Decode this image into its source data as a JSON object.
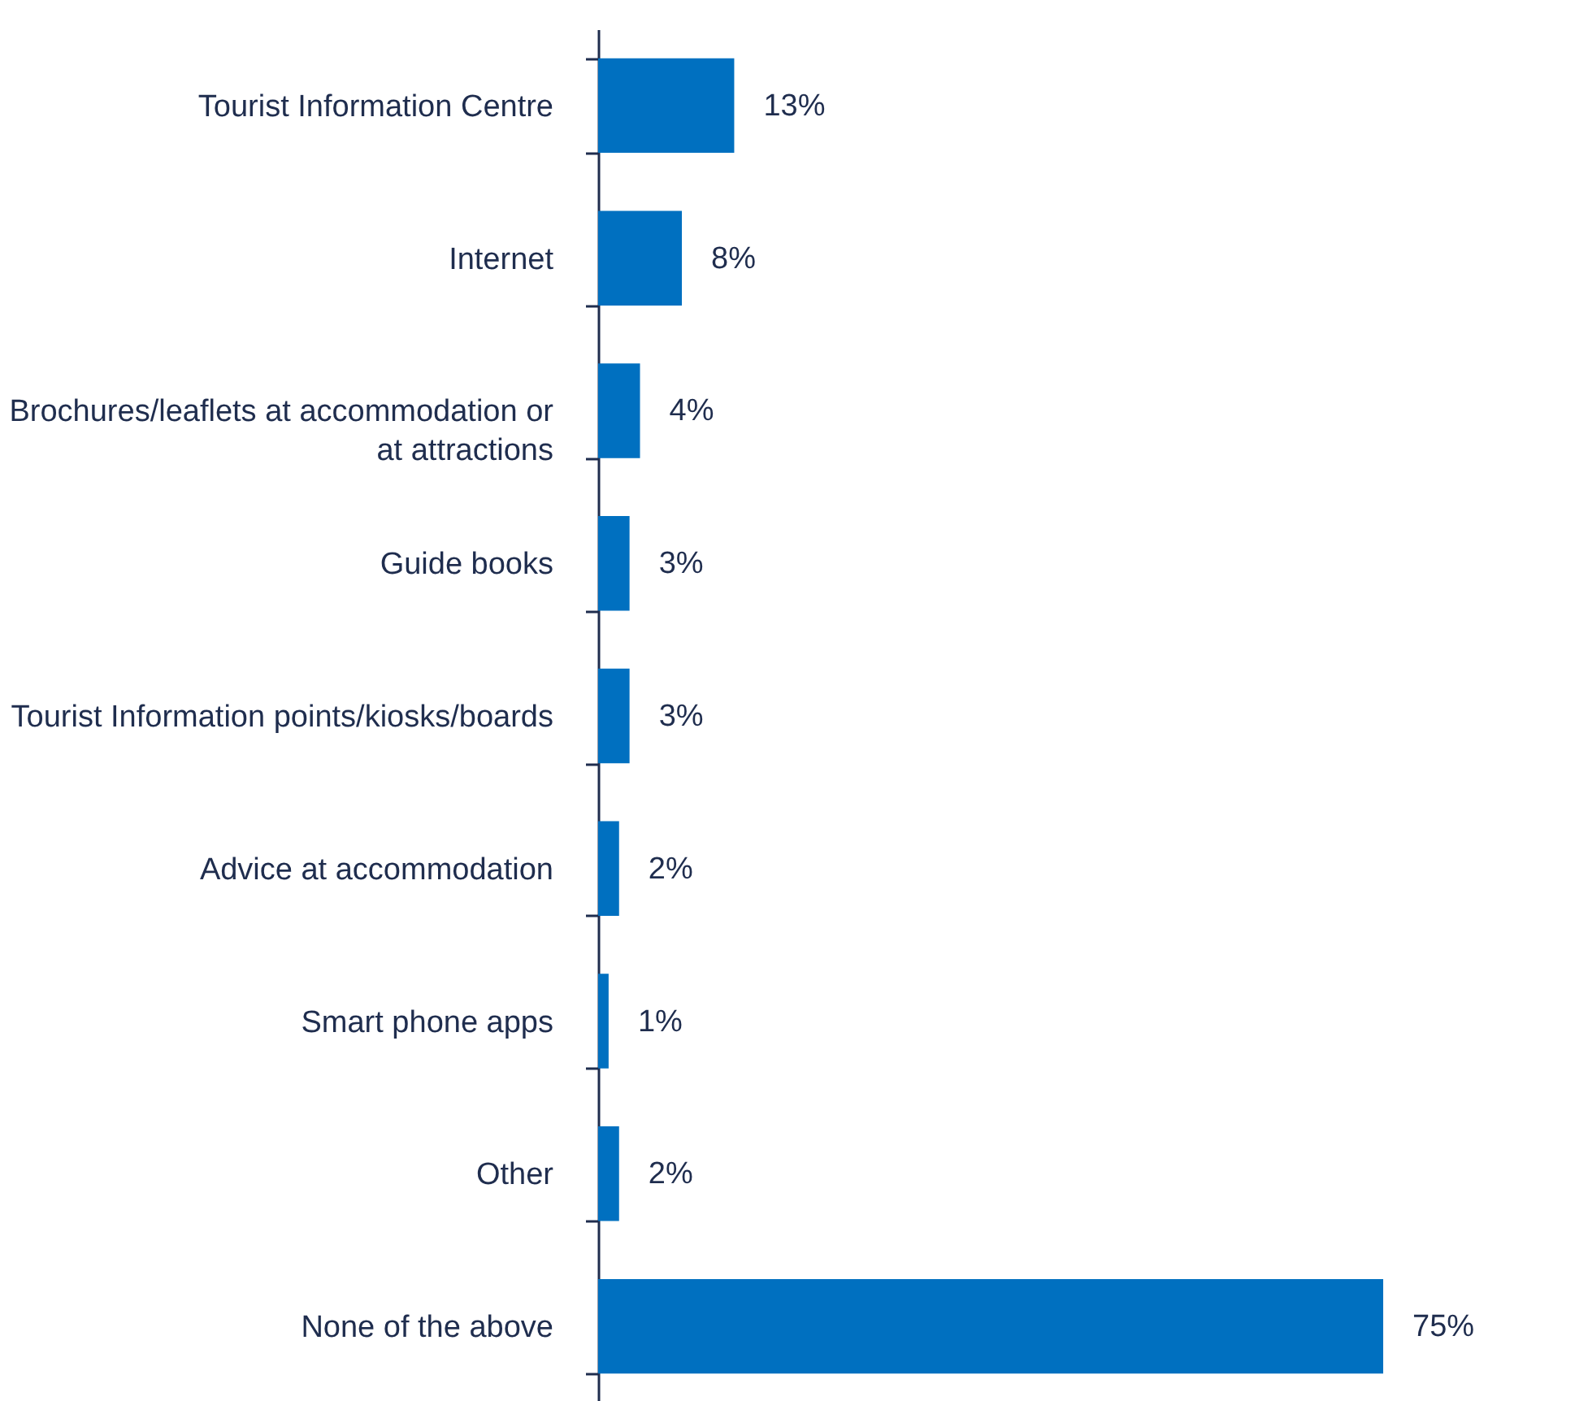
{
  "chart_data": {
    "type": "bar",
    "orientation": "horizontal",
    "categories": [
      "Tourist Information Centre",
      "Internet",
      "Brochures/leaflets at accommodation or at attractions",
      "Guide books",
      "Tourist Information points/kiosks/boards",
      "Advice at accommodation",
      "Smart phone apps",
      "Other",
      "None of the above"
    ],
    "values": [
      13,
      8,
      4,
      3,
      3,
      2,
      1,
      2,
      75
    ],
    "value_labels": [
      "13%",
      "8%",
      "4%",
      "3%",
      "3%",
      "2%",
      "1%",
      "2%",
      "75%"
    ],
    "color": "#0070c0"
  }
}
